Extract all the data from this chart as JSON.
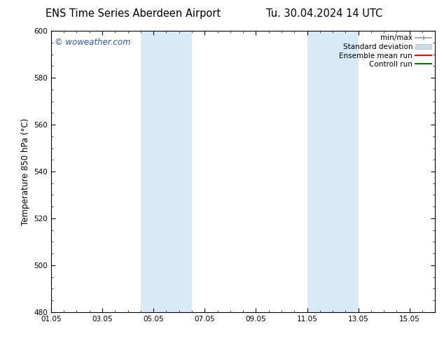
{
  "title_left": "ENS Time Series Aberdeen Airport",
  "title_right": "Tu. 30.04.2024 14 UTC",
  "ylabel": "Temperature 850 hPa (°C)",
  "ylim": [
    480,
    600
  ],
  "yticks": [
    480,
    500,
    520,
    540,
    560,
    580,
    600
  ],
  "xtick_labels": [
    "01.05",
    "03.05",
    "05.05",
    "07.05",
    "09.05",
    "11.05",
    "13.05",
    "15.05"
  ],
  "xtick_positions": [
    0,
    2,
    4,
    6,
    8,
    10,
    12,
    14
  ],
  "xlim": [
    0,
    15
  ],
  "shaded_bands": [
    {
      "x_start": 3.5,
      "x_end": 5.5,
      "color": "#d8eaf8"
    },
    {
      "x_start": 10.0,
      "x_end": 12.0,
      "color": "#d8eaf8"
    }
  ],
  "watermark_text": "© woweather.com",
  "watermark_color": "#2255cc",
  "legend_labels": [
    "min/max",
    "Standard deviation",
    "Ensemble mean run",
    "Controll run"
  ],
  "legend_colors_line": [
    "#aaaaaa",
    "#bbccdd",
    "#ff2200",
    "#007700"
  ],
  "bg_color": "#ffffff",
  "plot_bg_color": "#ffffff",
  "tick_fontsize": 7.5,
  "label_fontsize": 8.5,
  "title_fontsize": 10.5,
  "legend_fontsize": 7.5,
  "watermark_fontsize": 8.5
}
